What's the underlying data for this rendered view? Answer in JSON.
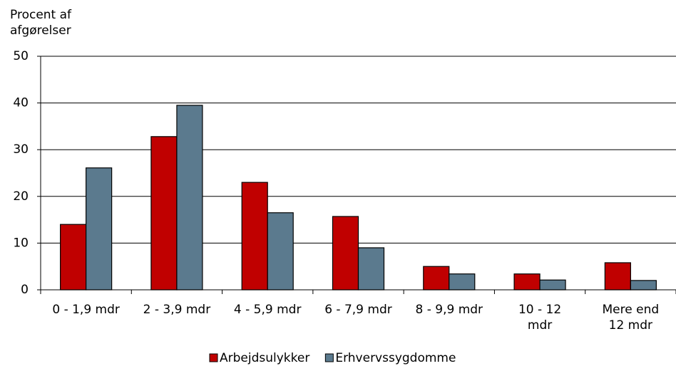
{
  "chart_data": {
    "type": "bar",
    "y_label": "Procent af\nafgørelser",
    "categories": [
      "0 - 1,9 mdr",
      "2 - 3,9 mdr",
      "4 - 5,9 mdr",
      "6 - 7,9 mdr",
      "8 - 9,9 mdr",
      "10 - 12\nmdr",
      "Mere end\n12 mdr"
    ],
    "series": [
      {
        "name": "Arbejdsulykker",
        "color": "#c00000",
        "values": [
          14,
          32.8,
          23,
          15.7,
          5,
          3.4,
          5.8
        ]
      },
      {
        "name": "Erhvervssygdomme",
        "color": "#5b7a8e",
        "values": [
          26.1,
          39.5,
          16.5,
          9,
          3.4,
          2.1,
          2
        ]
      }
    ],
    "ylim": [
      0,
      50
    ],
    "yticks": [
      0,
      10,
      20,
      30,
      40,
      50
    ],
    "grid": true,
    "legend": "bottom"
  }
}
